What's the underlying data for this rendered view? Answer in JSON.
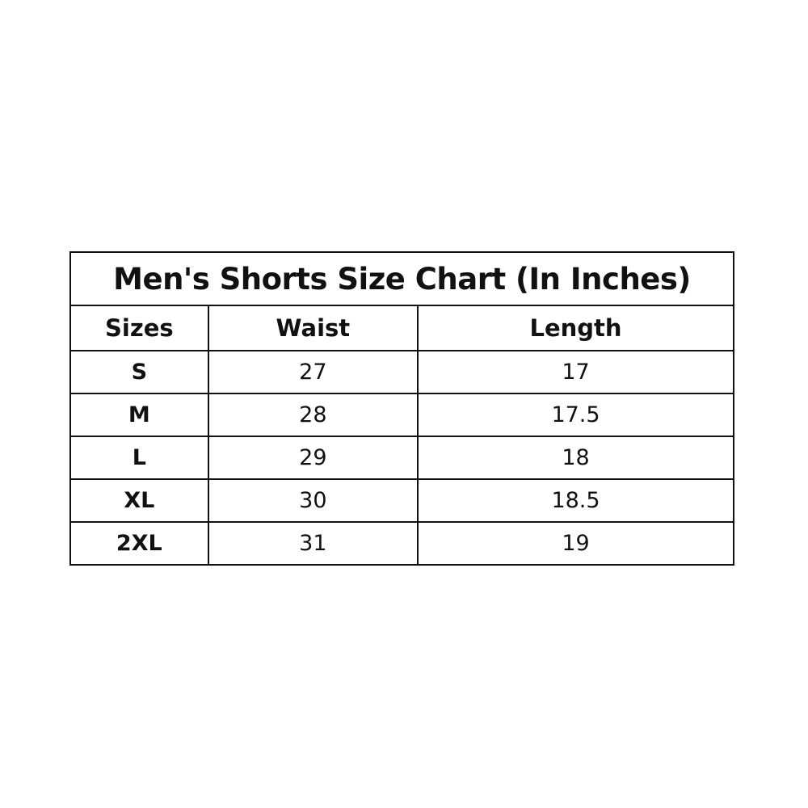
{
  "title": "Men's Shorts Size Chart (In Inches)",
  "headers": [
    "Sizes",
    "Waist",
    "Length"
  ],
  "rows": [
    [
      "S",
      "27",
      "17"
    ],
    [
      "M",
      "28",
      "17.5"
    ],
    [
      "L",
      "29",
      "18"
    ],
    [
      "XL",
      "30",
      "18.5"
    ],
    [
      "2XL",
      "31",
      "19"
    ]
  ]
}
